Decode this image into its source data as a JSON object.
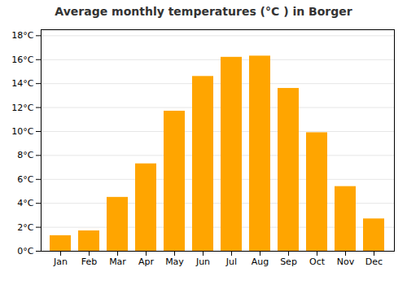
{
  "chart_data": {
    "type": "bar",
    "title": "Average monthly temperatures (°C ) in Borger",
    "categories": [
      "Jan",
      "Feb",
      "Mar",
      "Apr",
      "May",
      "Jun",
      "Jul",
      "Aug",
      "Sep",
      "Oct",
      "Nov",
      "Dec"
    ],
    "values": [
      1.3,
      1.7,
      4.5,
      7.3,
      11.7,
      14.6,
      16.2,
      16.3,
      13.6,
      9.9,
      5.4,
      2.7
    ],
    "color": "#FFA500",
    "ylim": [
      0,
      18.5
    ],
    "yticks": [
      {
        "value": 0,
        "label": "0°C"
      },
      {
        "value": 2,
        "label": "2°C"
      },
      {
        "value": 4,
        "label": "4°C"
      },
      {
        "value": 6,
        "label": "6°C"
      },
      {
        "value": 8,
        "label": "8°C"
      },
      {
        "value": 10,
        "label": "10°C"
      },
      {
        "value": 12,
        "label": "12°C"
      },
      {
        "value": 14,
        "label": "14°C"
      },
      {
        "value": 16,
        "label": "16°C"
      },
      {
        "value": 18,
        "label": "18°C"
      }
    ],
    "grid": true
  }
}
